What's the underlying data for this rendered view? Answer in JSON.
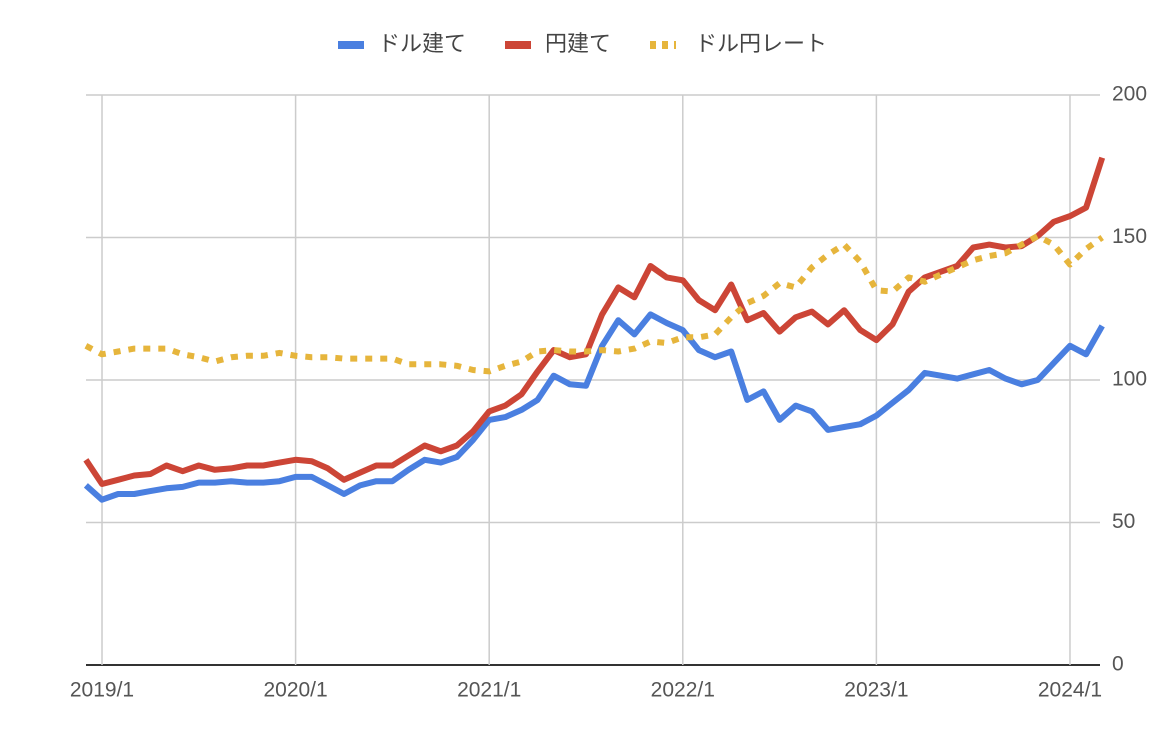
{
  "chart_data": {
    "type": "line",
    "legend": "top",
    "grid": true,
    "x": [
      "2018/12",
      "2019/1",
      "2019/2",
      "2019/3",
      "2019/4",
      "2019/5",
      "2019/6",
      "2019/7",
      "2019/8",
      "2019/9",
      "2019/10",
      "2019/11",
      "2019/12",
      "2020/1",
      "2020/2",
      "2020/3",
      "2020/4",
      "2020/5",
      "2020/6",
      "2020/7",
      "2020/8",
      "2020/9",
      "2020/10",
      "2020/11",
      "2020/12",
      "2021/1",
      "2021/2",
      "2021/3",
      "2021/4",
      "2021/5",
      "2021/6",
      "2021/7",
      "2021/8",
      "2021/9",
      "2021/10",
      "2021/11",
      "2021/12",
      "2022/1",
      "2022/2",
      "2022/3",
      "2022/4",
      "2022/5",
      "2022/6",
      "2022/7",
      "2022/8",
      "2022/9",
      "2022/10",
      "2022/11",
      "2022/12",
      "2023/1",
      "2023/2",
      "2023/3",
      "2023/4",
      "2023/5",
      "2023/6",
      "2023/7",
      "2023/8",
      "2023/9",
      "2023/10",
      "2023/11",
      "2023/12",
      "2024/1",
      "2024/2",
      "2024/3"
    ],
    "xticks": [
      "2019/1",
      "2020/1",
      "2021/1",
      "2022/1",
      "2023/1",
      "2024/1"
    ],
    "ylim": [
      0,
      200
    ],
    "yticks": [
      0,
      50,
      100,
      150,
      200
    ],
    "series": [
      {
        "name": "ドル建て",
        "color": "#4a7fe0",
        "style": "solid",
        "values": [
          63,
          58,
          60,
          60,
          61,
          62,
          62.5,
          64,
          64,
          64.5,
          64,
          64,
          64.5,
          66,
          66,
          63,
          60,
          63,
          64.5,
          64.5,
          68.5,
          72,
          71,
          73,
          79,
          86,
          87,
          89.5,
          93,
          101.5,
          98.5,
          98,
          112,
          121,
          116,
          123,
          120,
          117.5,
          110.5,
          108,
          110,
          93,
          96,
          86,
          91,
          89,
          82.5,
          83.5,
          84.5,
          87.5,
          92,
          96.5,
          102.5,
          101.5,
          100.5,
          102,
          103.5,
          100.5,
          98.5,
          100,
          106,
          112,
          109,
          119
        ]
      },
      {
        "name": "円建て",
        "color": "#cc4536",
        "style": "solid",
        "values": [
          72,
          63.5,
          65,
          66.5,
          67,
          70,
          68,
          70,
          68.5,
          69,
          70,
          70,
          71,
          72,
          71.5,
          69,
          65,
          67.5,
          70,
          70,
          73.5,
          77,
          75,
          77,
          82,
          89,
          91,
          95,
          103,
          110.5,
          108,
          109,
          123,
          132.5,
          129,
          140,
          136,
          135,
          128,
          124.5,
          133.5,
          121,
          123.5,
          117,
          122,
          124,
          119.5,
          124.5,
          117.5,
          114,
          119.5,
          131,
          136,
          138,
          140,
          146.5,
          147.5,
          146.5,
          147,
          150.5,
          155.5,
          157.5,
          160.5,
          178
        ]
      },
      {
        "name": "ドル円レート",
        "color": "#e6b53c",
        "style": "dotted",
        "values": [
          112,
          109,
          110,
          111,
          111,
          111,
          109,
          108,
          106.5,
          108,
          108.5,
          108.5,
          109.5,
          108.5,
          108,
          108,
          107.5,
          107.5,
          107.5,
          107.5,
          105.5,
          105.5,
          105.5,
          105,
          103.5,
          103,
          105,
          106.5,
          110,
          110.5,
          110,
          110,
          110.5,
          110,
          111,
          113.5,
          113,
          115,
          115,
          116,
          122,
          127,
          129.5,
          134,
          132.5,
          139.5,
          144,
          147.5,
          141.5,
          131.5,
          131,
          136,
          134.5,
          137,
          139.5,
          142,
          143.5,
          144.5,
          147.5,
          150.5,
          147.5,
          140.5,
          146,
          150
        ]
      }
    ]
  }
}
